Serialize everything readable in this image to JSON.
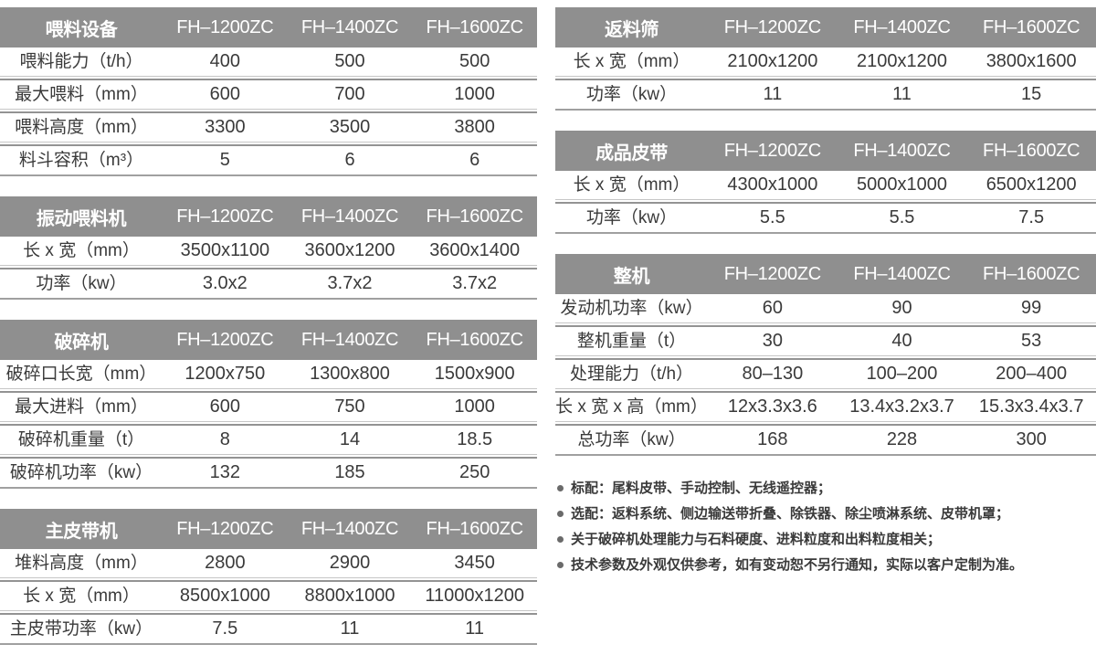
{
  "models": [
    "FH–1200ZC",
    "FH–1400ZC",
    "FH–1600ZC"
  ],
  "tables": [
    {
      "id": "feeding-equipment",
      "column": "left",
      "title": "喂料设备",
      "rows": [
        {
          "label": "喂料能力（t/h）",
          "values": [
            "400",
            "500",
            "500"
          ]
        },
        {
          "label": "最大喂料（mm）",
          "values": [
            "600",
            "700",
            "1000"
          ]
        },
        {
          "label": "喂料高度（mm）",
          "values": [
            "3300",
            "3500",
            "3800"
          ]
        },
        {
          "label": "料斗容积（m³）",
          "values": [
            "5",
            "6",
            "6"
          ]
        }
      ]
    },
    {
      "id": "vibrating-feeder",
      "column": "left",
      "title": "振动喂料机",
      "rows": [
        {
          "label": "长 x 宽（mm）",
          "values": [
            "3500x1100",
            "3600x1200",
            "3600x1400"
          ]
        },
        {
          "label": "功率（kw）",
          "values": [
            "3.0x2",
            "3.7x2",
            "3.7x2"
          ]
        }
      ]
    },
    {
      "id": "crusher",
      "column": "left",
      "title": "破碎机",
      "rows": [
        {
          "label": "破碎口长宽（mm）",
          "values": [
            "1200x750",
            "1300x800",
            "1500x900"
          ]
        },
        {
          "label": "最大进料（mm）",
          "values": [
            "600",
            "750",
            "1000"
          ]
        },
        {
          "label": "破碎机重量（t）",
          "values": [
            "8",
            "14",
            "18.5"
          ]
        },
        {
          "label": "破碎机功率（kw）",
          "values": [
            "132",
            "185",
            "250"
          ]
        }
      ]
    },
    {
      "id": "main-belt",
      "column": "left",
      "title": "主皮带机",
      "rows": [
        {
          "label": "堆料高度（mm）",
          "values": [
            "2800",
            "2900",
            "3450"
          ]
        },
        {
          "label": "长 x 宽（mm）",
          "values": [
            "8500x1000",
            "8800x1000",
            "11000x1200"
          ]
        },
        {
          "label": "主皮带功率（kw）",
          "values": [
            "7.5",
            "11",
            "11"
          ]
        }
      ]
    },
    {
      "id": "return-screen",
      "column": "right",
      "title": "返料筛",
      "rows": [
        {
          "label": "长 x 宽（mm）",
          "values": [
            "2100x1200",
            "2100x1200",
            "3800x1600"
          ]
        },
        {
          "label": "功率（kw）",
          "values": [
            "11",
            "11",
            "15"
          ]
        }
      ]
    },
    {
      "id": "product-belt",
      "column": "right",
      "title": "成品皮带",
      "rows": [
        {
          "label": "长 x 宽（mm）",
          "values": [
            "4300x1000",
            "5000x1000",
            "6500x1200"
          ]
        },
        {
          "label": "功率（kw）",
          "values": [
            "5.5",
            "5.5",
            "7.5"
          ]
        }
      ]
    },
    {
      "id": "complete-machine",
      "column": "right",
      "title": "整机",
      "rows": [
        {
          "label": "发动机功率（kw）",
          "values": [
            "60",
            "90",
            "99"
          ]
        },
        {
          "label": "整机重量（t）",
          "values": [
            "30",
            "40",
            "53"
          ]
        },
        {
          "label": "处理能力（t/h）",
          "values": [
            "80–130",
            "100–200",
            "200–400"
          ]
        },
        {
          "label": "长 x 宽 x 高（mm）",
          "values": [
            "12x3.3x3.6",
            "13.4x3.2x3.7",
            "15.3x3.4x3.7"
          ]
        },
        {
          "label": "总功率（kw）",
          "values": [
            "168",
            "228",
            "300"
          ]
        }
      ]
    }
  ],
  "notes": [
    "标配：尾料皮带、手动控制、无线遥控器；",
    "选配：返料系统、侧边输送带折叠、除铁器、除尘喷淋系统、皮带机罩；",
    "关于破碎机处理能力与石料硬度、进料粒度和出料粒度相关；",
    "技术参数及外观仅供参考，如有变动恕不另行通知，实际以客户定制为准。"
  ],
  "colors": {
    "header_bg": "#8f8f8f",
    "header_text": "#ffffff",
    "body_text": "#3a3a3a",
    "divider_dark": "#939393",
    "divider_light": "#c6c6c6",
    "bullet": "#6a6a6a"
  }
}
